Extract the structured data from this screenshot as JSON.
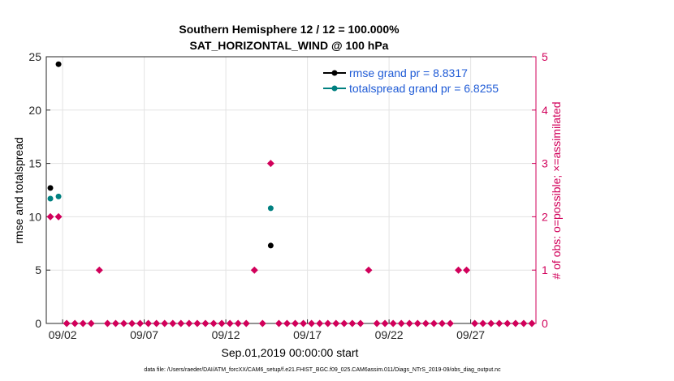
{
  "chart_data": {
    "type": "scatter",
    "title_line1": "Southern Hemisphere 12 / 12 = 100.000%",
    "title_line2": "SAT_HORIZONTAL_WIND @ 100 hPa",
    "xlabel": "Sep.01,2019 00:00:00 start",
    "ylabel_left": "rmse and totalspread",
    "ylabel_right": "# of obs: o=possible; ×=assimilated",
    "xlim": [
      0,
      30
    ],
    "ylim_left": [
      0,
      25
    ],
    "ylim_right": [
      0,
      5
    ],
    "x_ticks": [
      {
        "x": 1,
        "label": "09/02"
      },
      {
        "x": 6,
        "label": "09/07"
      },
      {
        "x": 11,
        "label": "09/12"
      },
      {
        "x": 16,
        "label": "09/17"
      },
      {
        "x": 21,
        "label": "09/22"
      },
      {
        "x": 26,
        "label": "09/27"
      }
    ],
    "y_ticks_left": [
      "0",
      "5",
      "10",
      "15",
      "20",
      "25"
    ],
    "y_ticks_right": [
      "0",
      "1",
      "2",
      "3",
      "4",
      "5"
    ],
    "legend": [
      {
        "label": "rmse grand pr = 8.8317",
        "color": "#000000"
      },
      {
        "label": "totalspread grand pr = 6.8255",
        "color": "#008080"
      }
    ],
    "series": [
      {
        "name": "rmse",
        "color": "#000000",
        "points": [
          [
            0.25,
            12.7
          ],
          [
            0.75,
            24.3
          ],
          [
            13.75,
            7.3
          ]
        ]
      },
      {
        "name": "totalspread",
        "color": "#008080",
        "points": [
          [
            0.25,
            11.7
          ],
          [
            0.75,
            11.9
          ],
          [
            13.75,
            10.8
          ]
        ]
      },
      {
        "name": "obs_possible",
        "axis": "right",
        "color": "#d1005a",
        "nonzero": [
          [
            0.25,
            2
          ],
          [
            0.75,
            2
          ],
          [
            3.25,
            1
          ],
          [
            12.75,
            1
          ],
          [
            13.75,
            3
          ],
          [
            19.75,
            1
          ],
          [
            25.25,
            1
          ],
          [
            25.75,
            1
          ]
        ]
      }
    ]
  },
  "footer": {
    "data_file": "data file: /Users/raeder/DAI/ATM_forcXX/CAM6_setup/f.e21.FHIST_BGC.f09_025.CAM6assim.011/Diags_NTrS_2019-09/obs_diag_output.nc"
  }
}
